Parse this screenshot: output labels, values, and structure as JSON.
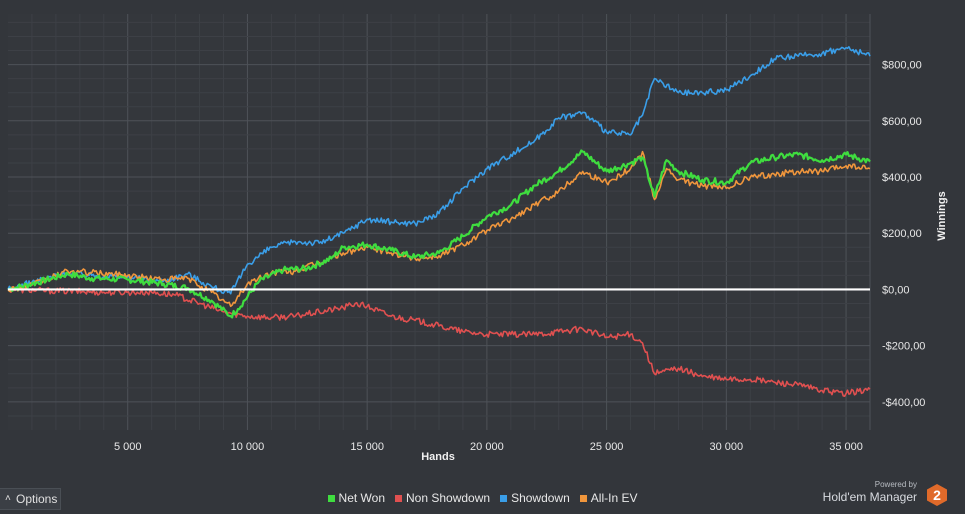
{
  "chart_data": {
    "type": "line",
    "xlabel": "Hands",
    "ylabel": "Winnings",
    "xlim": [
      0,
      36000
    ],
    "ylim": [
      -500,
      980
    ],
    "x_ticks": [
      {
        "value": 5000,
        "label": "5 000"
      },
      {
        "value": 10000,
        "label": "10 000"
      },
      {
        "value": 15000,
        "label": "15 000"
      },
      {
        "value": 20000,
        "label": "20 000"
      },
      {
        "value": 25000,
        "label": "25 000"
      },
      {
        "value": 30000,
        "label": "30 000"
      },
      {
        "value": 35000,
        "label": "35 000"
      }
    ],
    "y_ticks": [
      {
        "value": 800,
        "label": "$800,00"
      },
      {
        "value": 600,
        "label": "$600,00"
      },
      {
        "value": 400,
        "label": "$400,00"
      },
      {
        "value": 200,
        "label": "$200,00"
      },
      {
        "value": 0,
        "label": "$0,00"
      },
      {
        "value": -200,
        "label": "-$200,00"
      },
      {
        "value": -400,
        "label": "-$400,00"
      }
    ],
    "grid": true,
    "legend_position": "bottom",
    "series": [
      {
        "name": "Net Won",
        "color": "#3fdd3f",
        "points": [
          [
            0,
            0
          ],
          [
            1000,
            20
          ],
          [
            2500,
            55
          ],
          [
            3500,
            40
          ],
          [
            5000,
            35
          ],
          [
            6500,
            20
          ],
          [
            7500,
            5
          ],
          [
            8500,
            -40
          ],
          [
            9300,
            -95
          ],
          [
            9600,
            -70
          ],
          [
            10500,
            30
          ],
          [
            11500,
            70
          ],
          [
            12500,
            75
          ],
          [
            13500,
            110
          ],
          [
            14000,
            150
          ],
          [
            15000,
            160
          ],
          [
            16000,
            140
          ],
          [
            17000,
            115
          ],
          [
            18000,
            130
          ],
          [
            19000,
            190
          ],
          [
            20000,
            260
          ],
          [
            21000,
            300
          ],
          [
            22000,
            370
          ],
          [
            23000,
            420
          ],
          [
            24000,
            490
          ],
          [
            25000,
            420
          ],
          [
            26000,
            450
          ],
          [
            26500,
            470
          ],
          [
            27000,
            330
          ],
          [
            27500,
            460
          ],
          [
            28000,
            420
          ],
          [
            29000,
            390
          ],
          [
            30000,
            380
          ],
          [
            31000,
            450
          ],
          [
            32000,
            470
          ],
          [
            33000,
            480
          ],
          [
            34000,
            460
          ],
          [
            35000,
            480
          ],
          [
            36000,
            455
          ]
        ]
      },
      {
        "name": "Non Showdown",
        "color": "#e05050",
        "points": [
          [
            0,
            0
          ],
          [
            2000,
            -5
          ],
          [
            4000,
            -10
          ],
          [
            6000,
            -10
          ],
          [
            7000,
            -20
          ],
          [
            8000,
            -50
          ],
          [
            9000,
            -80
          ],
          [
            10000,
            -95
          ],
          [
            11000,
            -100
          ],
          [
            12000,
            -95
          ],
          [
            13000,
            -80
          ],
          [
            14000,
            -65
          ],
          [
            14500,
            -50
          ],
          [
            15000,
            -60
          ],
          [
            16000,
            -95
          ],
          [
            17000,
            -110
          ],
          [
            18000,
            -130
          ],
          [
            19000,
            -150
          ],
          [
            20000,
            -160
          ],
          [
            21000,
            -160
          ],
          [
            22000,
            -160
          ],
          [
            23000,
            -150
          ],
          [
            24000,
            -140
          ],
          [
            25000,
            -170
          ],
          [
            26000,
            -160
          ],
          [
            26500,
            -190
          ],
          [
            27000,
            -300
          ],
          [
            28000,
            -280
          ],
          [
            29000,
            -310
          ],
          [
            30000,
            -320
          ],
          [
            31000,
            -320
          ],
          [
            32000,
            -330
          ],
          [
            33000,
            -340
          ],
          [
            34000,
            -360
          ],
          [
            35000,
            -370
          ],
          [
            36000,
            -355
          ]
        ]
      },
      {
        "name": "Showdown",
        "color": "#3a9ee8",
        "points": [
          [
            0,
            0
          ],
          [
            1000,
            25
          ],
          [
            2500,
            60
          ],
          [
            3500,
            50
          ],
          [
            5000,
            45
          ],
          [
            6500,
            30
          ],
          [
            7500,
            55
          ],
          [
            8500,
            10
          ],
          [
            9300,
            -15
          ],
          [
            10000,
            90
          ],
          [
            11000,
            150
          ],
          [
            12000,
            170
          ],
          [
            13000,
            165
          ],
          [
            14000,
            200
          ],
          [
            15000,
            250
          ],
          [
            16000,
            240
          ],
          [
            17000,
            235
          ],
          [
            18000,
            270
          ],
          [
            19000,
            360
          ],
          [
            20000,
            430
          ],
          [
            21000,
            480
          ],
          [
            22000,
            530
          ],
          [
            23000,
            610
          ],
          [
            24000,
            630
          ],
          [
            25000,
            560
          ],
          [
            26000,
            550
          ],
          [
            26500,
            620
          ],
          [
            27000,
            750
          ],
          [
            28000,
            700
          ],
          [
            29000,
            700
          ],
          [
            30000,
            710
          ],
          [
            31000,
            760
          ],
          [
            32000,
            820
          ],
          [
            33000,
            830
          ],
          [
            34000,
            840
          ],
          [
            35000,
            860
          ],
          [
            36000,
            830
          ]
        ]
      },
      {
        "name": "All-In EV",
        "color": "#f0963c",
        "points": [
          [
            0,
            0
          ],
          [
            1000,
            15
          ],
          [
            2500,
            65
          ],
          [
            3500,
            60
          ],
          [
            5000,
            50
          ],
          [
            6500,
            35
          ],
          [
            7500,
            40
          ],
          [
            8500,
            -10
          ],
          [
            9300,
            -60
          ],
          [
            10000,
            20
          ],
          [
            11000,
            60
          ],
          [
            12000,
            65
          ],
          [
            13000,
            95
          ],
          [
            14000,
            130
          ],
          [
            15000,
            150
          ],
          [
            16000,
            130
          ],
          [
            17000,
            110
          ],
          [
            18000,
            120
          ],
          [
            19000,
            160
          ],
          [
            20000,
            210
          ],
          [
            21000,
            250
          ],
          [
            22000,
            300
          ],
          [
            23000,
            350
          ],
          [
            24000,
            420
          ],
          [
            25000,
            380
          ],
          [
            26000,
            430
          ],
          [
            26500,
            490
          ],
          [
            27000,
            320
          ],
          [
            27500,
            430
          ],
          [
            28000,
            390
          ],
          [
            29000,
            370
          ],
          [
            30000,
            360
          ],
          [
            31000,
            400
          ],
          [
            32000,
            410
          ],
          [
            33000,
            420
          ],
          [
            34000,
            420
          ],
          [
            35000,
            440
          ],
          [
            36000,
            430
          ]
        ]
      }
    ]
  },
  "ui": {
    "options_label": "Options",
    "powered_by": "Powered by",
    "brand_name": "Hold'em Manager",
    "brand_logo_text": "2"
  },
  "colors": {
    "background": "#33363b",
    "zero_line": "#ffffff",
    "grid_major": "#4e5258",
    "grid_minor": "#3d4046",
    "logo": "#e06a2a"
  }
}
